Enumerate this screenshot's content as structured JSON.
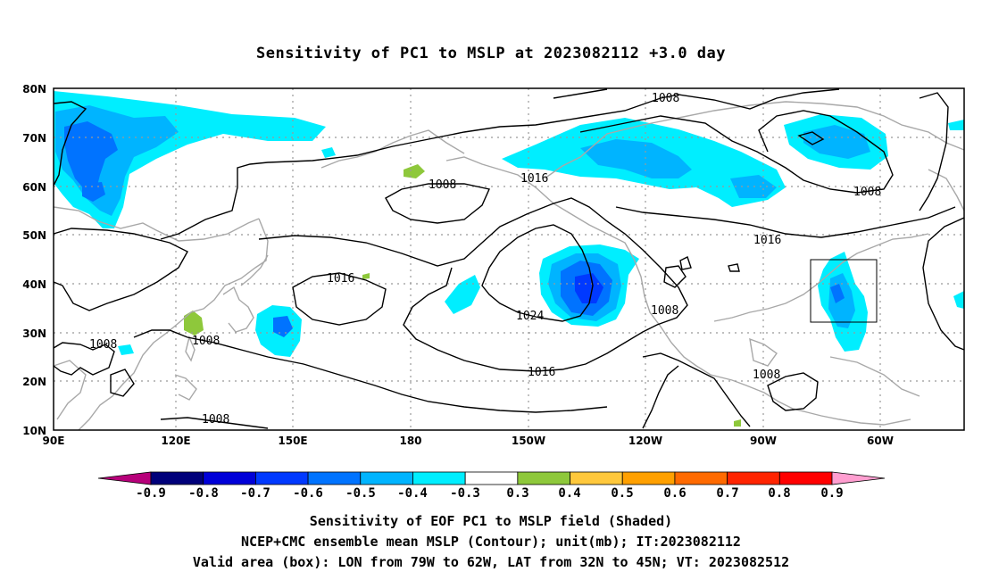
{
  "title": "Sensitivity of PC1 to MSLP at 2023082112 +3.0 day",
  "map": {
    "lat_labels": [
      "80N",
      "70N",
      "60N",
      "50N",
      "40N",
      "30N",
      "20N",
      "10N"
    ],
    "lon_labels": [
      "90E",
      "120E",
      "150E",
      "180",
      "150W",
      "120W",
      "90W",
      "60W"
    ],
    "contour_labels": [
      {
        "text": "1008",
        "id": "c1008-north"
      },
      {
        "text": "1008",
        "id": "c1008-pacific"
      },
      {
        "text": "1016",
        "id": "c1016-japan"
      },
      {
        "text": "1008",
        "id": "c1008-asia"
      },
      {
        "text": "1008",
        "id": "c1008-taiwan"
      },
      {
        "text": "1008",
        "id": "c1008-scs"
      },
      {
        "text": "1016",
        "id": "c1016-alaska"
      },
      {
        "text": "1024",
        "id": "c1024-high"
      },
      {
        "text": "1016",
        "id": "c1016-south"
      },
      {
        "text": "1008",
        "id": "c1008-mexico"
      },
      {
        "text": "1016",
        "id": "c1016-canada"
      },
      {
        "text": "1008",
        "id": "c1008-gulf"
      },
      {
        "text": "1008",
        "id": "c1008-hudson"
      }
    ],
    "valid_box": {
      "lon_from": "79W",
      "lon_to": "62W",
      "lat_from": "32N",
      "lat_to": "45N"
    }
  },
  "colorbar": {
    "labels": [
      "-0.9",
      "-0.8",
      "-0.7",
      "-0.6",
      "-0.5",
      "-0.4",
      "-0.3",
      "0.3",
      "0.4",
      "0.5",
      "0.6",
      "0.7",
      "0.8",
      "0.9"
    ],
    "colors": {
      "neg_tip": "#b7007a",
      "bins": [
        "#00007a",
        "#0000d8",
        "#0039ff",
        "#0073ff",
        "#00b4ff",
        "#00eeff",
        "#ffffff",
        "#8ec83b",
        "#ffc83c",
        "#ffa000",
        "#ff6a00",
        "#ff2400",
        "#ff0000"
      ],
      "pos_tip": "#ff9ed0"
    }
  },
  "captions": {
    "line1": "Sensitivity of EOF PC1 to MSLP field (Shaded)",
    "line2": "NCEP+CMC ensemble mean MSLP (Contour); unit(mb); IT:2023082112",
    "line3": "Valid area (box): LON from 79W to 62W, LAT from 32N to 45N; VT: 2023082512"
  }
}
